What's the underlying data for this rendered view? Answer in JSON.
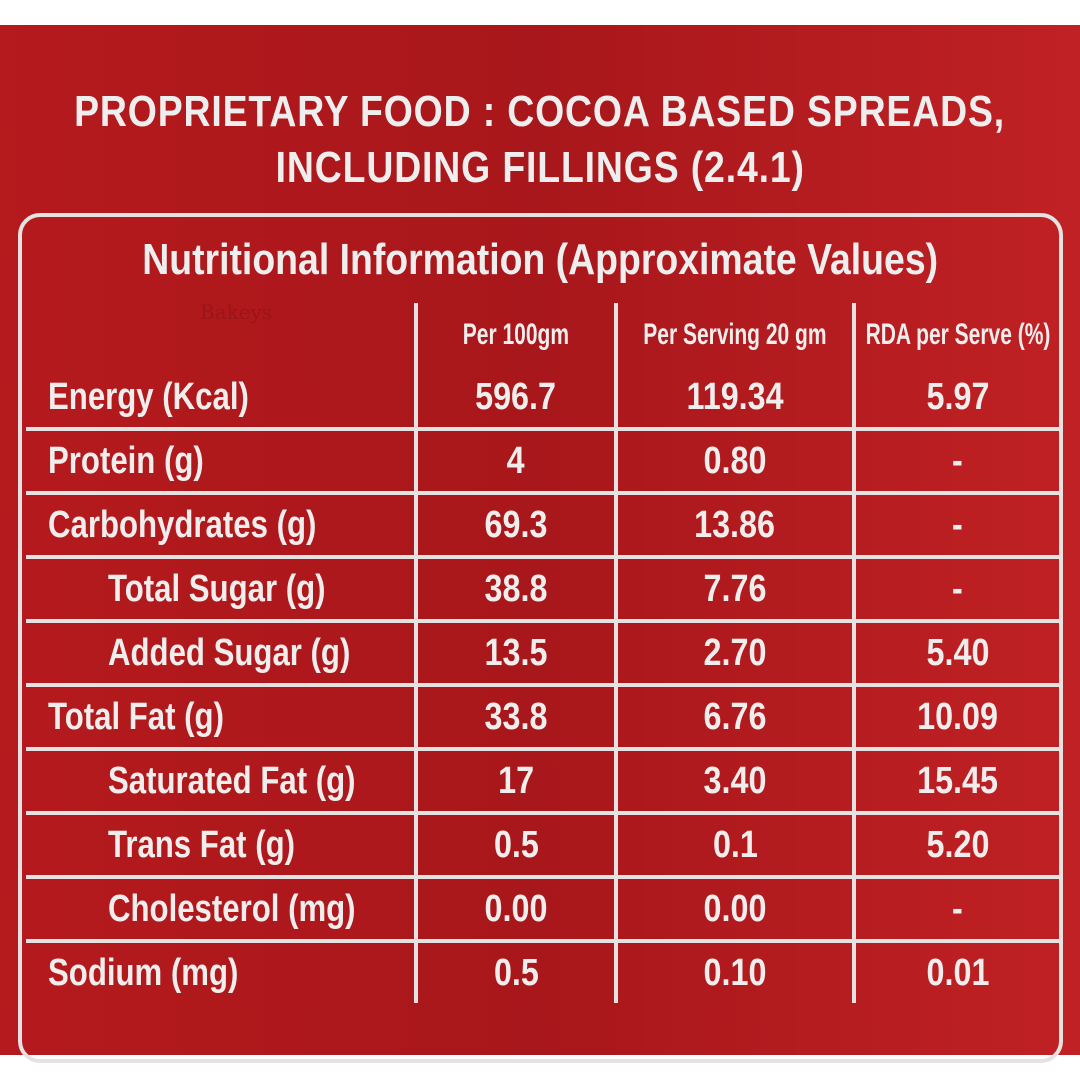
{
  "title_line1": "PROPRIETARY FOOD : COCOA BASED SPREADS,",
  "title_line2": "INCLUDING FILLINGS (2.4.1)",
  "watermark": "Bakeys",
  "colors": {
    "label_red": "#b51a1d",
    "text": "#f0eded"
  },
  "table": {
    "heading": "Nutritional Information (Approximate Values)",
    "columns": [
      "",
      "Per 100gm",
      "Per Serving 20 gm",
      "RDA per Serve (%)"
    ],
    "rows": [
      {
        "name": "Energy (Kcal)",
        "per100": "596.7",
        "serving": "119.34",
        "rda": "5.97"
      },
      {
        "name": "Protein (g)",
        "per100": "4",
        "serving": "0.80",
        "rda": "-"
      },
      {
        "name": "Carbohydrates (g)",
        "per100": "69.3",
        "serving": "13.86",
        "rda": "-"
      },
      {
        "name": "Total Sugar (g)",
        "per100": "38.8",
        "serving": "7.76",
        "rda": "-"
      },
      {
        "name": "Added Sugar (g)",
        "per100": "13.5",
        "serving": "2.70",
        "rda": "5.40"
      },
      {
        "name": "Total Fat (g)",
        "per100": "33.8",
        "serving": "6.76",
        "rda": "10.09"
      },
      {
        "name": "Saturated Fat (g)",
        "per100": "17",
        "serving": "3.40",
        "rda": "15.45"
      },
      {
        "name": "Trans Fat (g)",
        "per100": "0.5",
        "serving": "0.1",
        "rda": "5.20"
      },
      {
        "name": "Cholesterol (mg)",
        "per100": "0.00",
        "serving": "0.00",
        "rda": "-"
      },
      {
        "name": "Sodium (mg)",
        "per100": "0.5",
        "serving": "0.10",
        "rda": "0.01"
      }
    ]
  }
}
